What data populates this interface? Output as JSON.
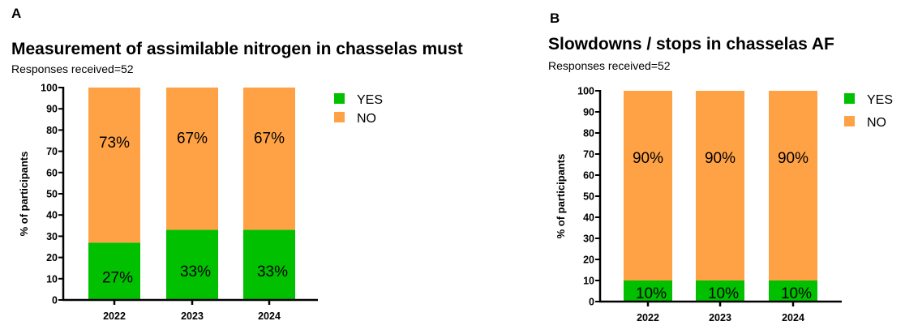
{
  "colors": {
    "yes": "#00c000",
    "no": "#ffa245",
    "axis": "#000000"
  },
  "chart_data": [
    {
      "type": "bar",
      "stacked": true,
      "panel": "A",
      "title": "Measurement of assimilable nitrogen in chasselas must",
      "subtitle": "Responses received=52",
      "xlabel": "",
      "ylabel": "% of participants",
      "ylim": [
        0,
        100
      ],
      "yticks": [
        0,
        10,
        20,
        30,
        40,
        50,
        60,
        70,
        80,
        90,
        100
      ],
      "categories": [
        "2022",
        "2023",
        "2024"
      ],
      "series": [
        {
          "name": "YES",
          "values": [
            27,
            33,
            33
          ],
          "labels": [
            "27%",
            "33%",
            "33%"
          ]
        },
        {
          "name": "NO",
          "values": [
            73,
            67,
            67
          ],
          "labels": [
            "73%",
            "67%",
            "67%"
          ]
        }
      ],
      "legend": "right"
    },
    {
      "type": "bar",
      "stacked": true,
      "panel": "B",
      "title": "Slowdowns / stops in chasselas AF",
      "subtitle": "Responses received=52",
      "xlabel": "",
      "ylabel": "% of participants",
      "ylim": [
        0,
        100
      ],
      "yticks": [
        0,
        10,
        20,
        30,
        40,
        50,
        60,
        70,
        80,
        90,
        100
      ],
      "categories": [
        "2022",
        "2023",
        "2024"
      ],
      "series": [
        {
          "name": "YES",
          "values": [
            10,
            10,
            10
          ],
          "labels": [
            "10%",
            "10%",
            "10%"
          ]
        },
        {
          "name": "NO",
          "values": [
            90,
            90,
            90
          ],
          "labels": [
            "90%",
            "90%",
            "90%"
          ]
        }
      ],
      "legend": "right"
    }
  ]
}
